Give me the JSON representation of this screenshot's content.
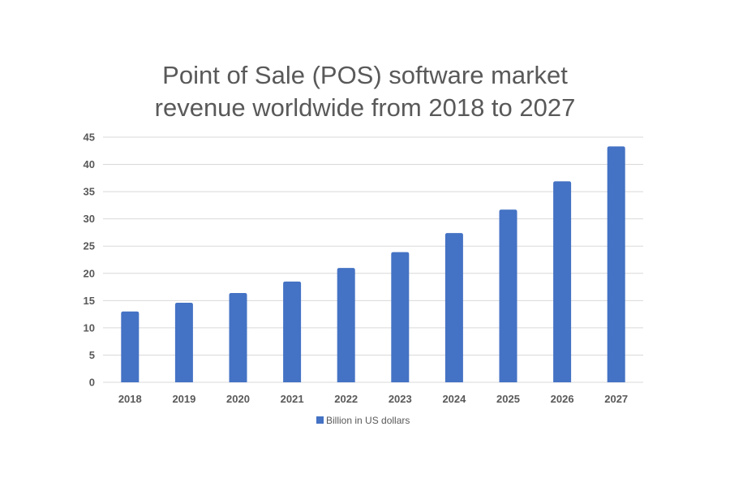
{
  "chart_data": {
    "type": "bar",
    "title_lines": [
      "Point of Sale (POS) software market",
      "revenue worldwide from 2018 to 2027"
    ],
    "categories": [
      "2018",
      "2019",
      "2020",
      "2021",
      "2022",
      "2023",
      "2024",
      "2025",
      "2026",
      "2027"
    ],
    "series": [
      {
        "name": "Billion in US dollars",
        "values": [
          13.0,
          14.6,
          16.4,
          18.5,
          21.0,
          23.9,
          27.4,
          31.7,
          36.9,
          43.3
        ],
        "color": "#4472c4"
      }
    ],
    "ylim": [
      0,
      45
    ],
    "yticks": [
      0,
      5,
      10,
      15,
      20,
      25,
      30,
      35,
      40,
      45
    ],
    "xlabel": "",
    "ylabel": "",
    "grid": true,
    "legend_position": "bottom"
  }
}
